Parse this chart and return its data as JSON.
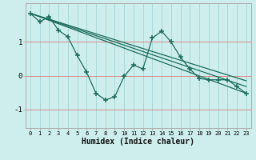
{
  "xlabel": "Humidex (Indice chaleur)",
  "bg_color": "#ceeeed",
  "line_color": "#1a6b5a",
  "grid_color": "#a8d8d8",
  "xlim": [
    -0.5,
    23.5
  ],
  "ylim": [
    -1.55,
    2.15
  ],
  "yticks": [
    -1,
    0,
    1
  ],
  "xticks": [
    0,
    1,
    2,
    3,
    4,
    5,
    6,
    7,
    8,
    9,
    10,
    11,
    12,
    13,
    14,
    15,
    16,
    17,
    18,
    19,
    20,
    21,
    22,
    23
  ],
  "jagged_x": [
    0,
    1,
    2,
    3,
    4,
    5,
    6,
    7,
    8,
    9,
    10,
    11,
    12,
    13,
    14,
    15,
    16,
    17,
    18,
    19,
    20,
    21,
    22,
    23
  ],
  "jagged_y": [
    1.85,
    1.6,
    1.75,
    1.35,
    1.15,
    0.6,
    0.1,
    -0.52,
    -0.72,
    -0.62,
    -0.02,
    0.32,
    0.2,
    1.12,
    1.32,
    1.0,
    0.55,
    0.2,
    -0.08,
    -0.12,
    -0.12,
    -0.12,
    -0.32,
    -0.52
  ],
  "line1_x": [
    0,
    23
  ],
  "line1_y": [
    1.85,
    -0.52
  ],
  "line2_x": [
    0,
    23
  ],
  "line2_y": [
    1.85,
    -0.32
  ],
  "line3_x": [
    0,
    23
  ],
  "line3_y": [
    1.85,
    -0.15
  ]
}
